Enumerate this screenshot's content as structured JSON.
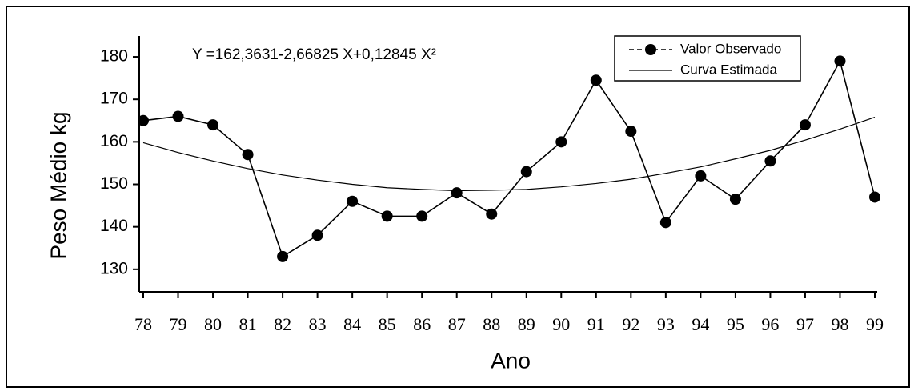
{
  "chart_data": {
    "type": "line",
    "annotation": "Y =162,3631-2,66825 X+0,12845 X²",
    "x_label": "Ano",
    "y_label": "Peso Médio kg",
    "categories": [
      "78",
      "79",
      "80",
      "81",
      "82",
      "83",
      "84",
      "85",
      "86",
      "87",
      "88",
      "89",
      "90",
      "91",
      "92",
      "93",
      "94",
      "95",
      "96",
      "97",
      "98",
      "99"
    ],
    "series": [
      {
        "name": "Valor Observado",
        "color": "#000000",
        "marker": "circle",
        "values": [
          165,
          166,
          164,
          157,
          133,
          138,
          146,
          142.5,
          142.5,
          148,
          143,
          153,
          160,
          174.5,
          162.5,
          141,
          152,
          146.5,
          155.5,
          164,
          179,
          147
        ]
      },
      {
        "name": "Curva Estimada",
        "color": "#000000",
        "values": [
          159.8,
          157.5,
          155.5,
          153.7,
          152.2,
          151.0,
          150.0,
          149.2,
          148.8,
          148.5,
          148.6,
          148.8,
          149.4,
          150.2,
          151.2,
          152.6,
          154.1,
          156.0,
          158.0,
          160.4,
          163.0,
          165.8
        ]
      }
    ],
    "ylim": [
      124.7,
      184.9
    ],
    "yticks": [
      130,
      140,
      150,
      160,
      170,
      180
    ]
  }
}
